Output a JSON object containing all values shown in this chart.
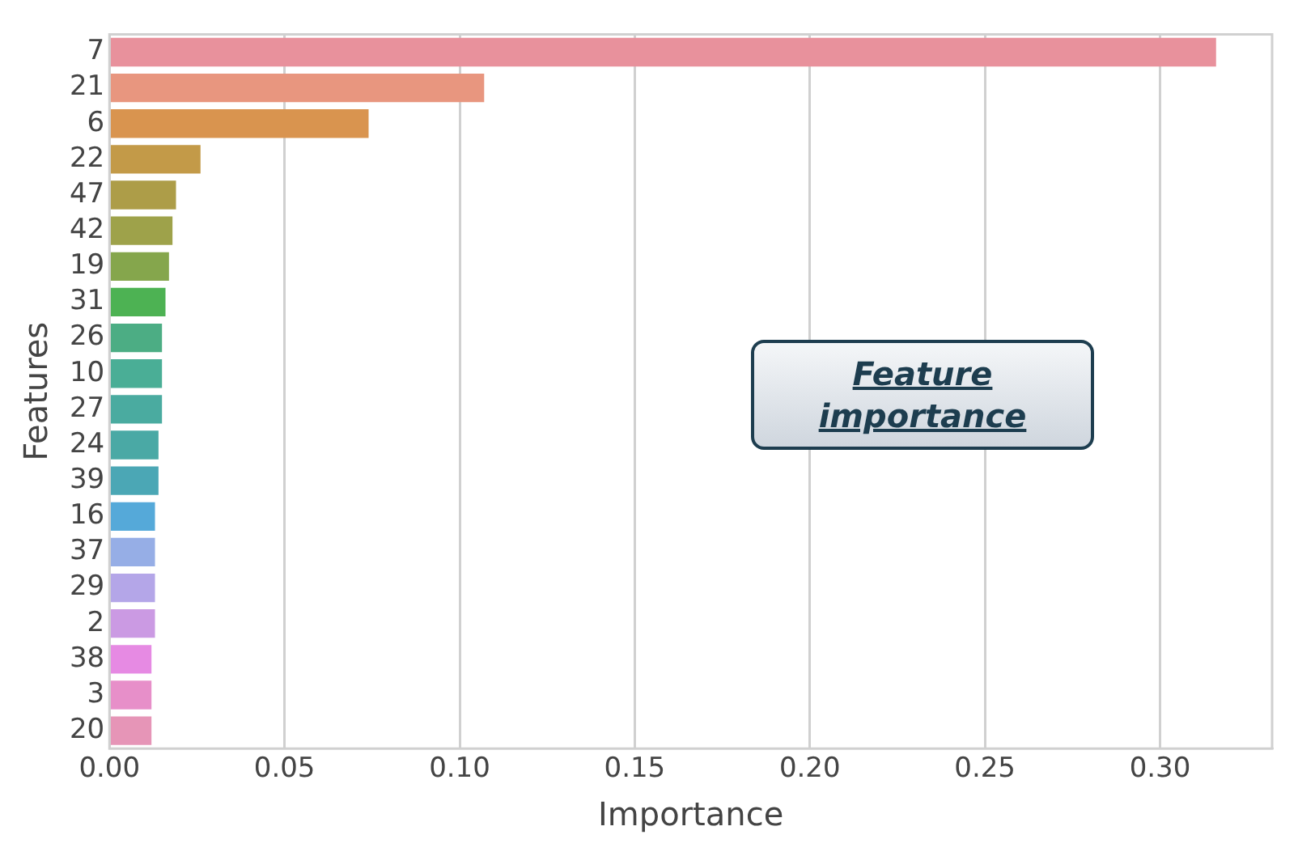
{
  "chart_data": {
    "type": "bar",
    "orientation": "horizontal",
    "xlabel": "Importance",
    "ylabel": "Features",
    "categories": [
      "7",
      "21",
      "6",
      "22",
      "47",
      "42",
      "19",
      "31",
      "26",
      "10",
      "27",
      "24",
      "39",
      "16",
      "37",
      "29",
      "2",
      "38",
      "3",
      "20"
    ],
    "values": [
      0.316,
      0.107,
      0.074,
      0.026,
      0.019,
      0.018,
      0.017,
      0.016,
      0.015,
      0.015,
      0.015,
      0.014,
      0.014,
      0.013,
      0.013,
      0.013,
      0.013,
      0.012,
      0.012,
      0.012
    ],
    "colors": [
      "#e8919c",
      "#e8967f",
      "#d9944f",
      "#c39a48",
      "#ad9d48",
      "#9ea24a",
      "#85a64c",
      "#4db253",
      "#4cad84",
      "#4aae96",
      "#4aaba0",
      "#4aa9a5",
      "#4ba7b5",
      "#55a9d9",
      "#96aee6",
      "#b4a6e8",
      "#cb9ae3",
      "#e68ae3",
      "#e78fc9",
      "#e695b7"
    ],
    "xlim": [
      0,
      0.332
    ],
    "xticks": [
      {
        "value": 0,
        "label": "0.00"
      },
      {
        "value": 0.05,
        "label": "0.05"
      },
      {
        "value": 0.1,
        "label": "0.10"
      },
      {
        "value": 0.15,
        "label": "0.15"
      },
      {
        "value": 0.2,
        "label": "0.20"
      },
      {
        "value": 0.25,
        "label": "0.25"
      },
      {
        "value": 0.3,
        "label": "0.30"
      }
    ],
    "grid": "x",
    "annotations": [
      "Feature importance"
    ]
  }
}
